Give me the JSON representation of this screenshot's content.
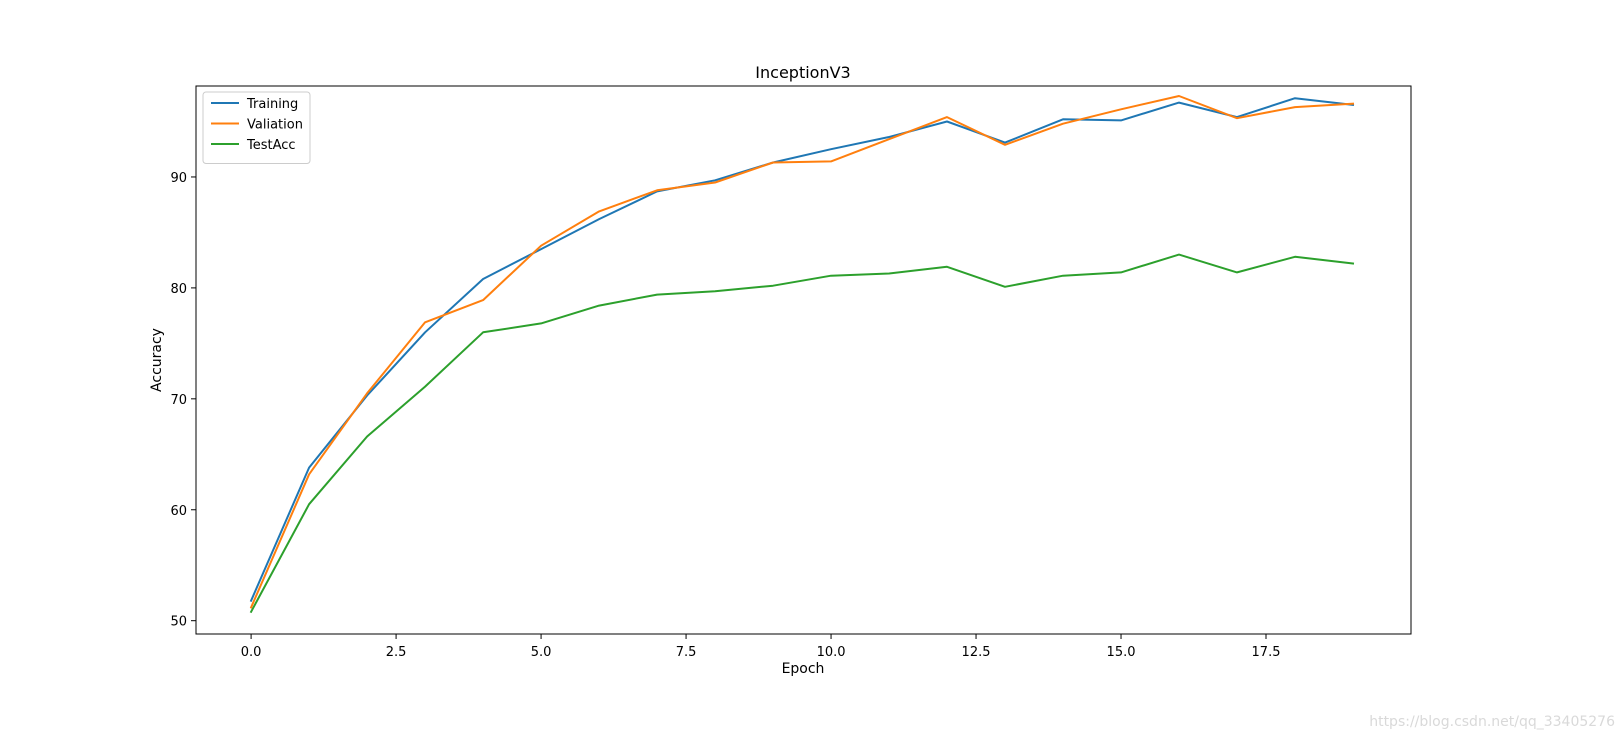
{
  "chart_data": {
    "type": "line",
    "title": "InceptionV3",
    "xlabel": "Epoch",
    "ylabel": "Accuracy",
    "xlim": [
      -0.95,
      20.0
    ],
    "ylim": [
      48.8,
      98.2
    ],
    "xticks": [
      0.0,
      2.5,
      5.0,
      7.5,
      10.0,
      12.5,
      15.0,
      17.5
    ],
    "xtick_labels": [
      "0.0",
      "2.5",
      "5.0",
      "7.5",
      "10.0",
      "12.5",
      "15.0",
      "17.5"
    ],
    "yticks": [
      50,
      60,
      70,
      80,
      90
    ],
    "ytick_labels": [
      "50",
      "60",
      "70",
      "80",
      "90"
    ],
    "grid": false,
    "legend_position": "top-left",
    "x": [
      0,
      1,
      2,
      3,
      4,
      5,
      6,
      7,
      8,
      9,
      10,
      11,
      12,
      13,
      14,
      15,
      16,
      17,
      18,
      19
    ],
    "series": [
      {
        "name": "Training",
        "color": "#1f77b4",
        "values": [
          51.8,
          63.8,
          70.3,
          76.0,
          80.8,
          83.5,
          86.2,
          88.7,
          89.7,
          91.3,
          92.5,
          93.6,
          95.0,
          93.1,
          95.2,
          95.1,
          96.7,
          95.4,
          97.1,
          96.5
        ]
      },
      {
        "name": "Valiation",
        "color": "#ff7f0e",
        "values": [
          51.2,
          63.2,
          70.5,
          76.9,
          78.9,
          83.8,
          86.9,
          88.8,
          89.5,
          91.3,
          91.4,
          93.4,
          95.4,
          92.9,
          94.8,
          96.1,
          97.3,
          95.3,
          96.3,
          96.6
        ]
      },
      {
        "name": "TestAcc",
        "color": "#2ca02c",
        "values": [
          50.8,
          60.5,
          66.6,
          71.1,
          76.0,
          76.8,
          78.4,
          79.4,
          79.7,
          80.2,
          81.1,
          81.3,
          81.9,
          80.1,
          81.1,
          81.4,
          83.0,
          81.4,
          82.8,
          82.2
        ]
      }
    ]
  },
  "watermark": "https://blog.csdn.net/qq_33405276"
}
